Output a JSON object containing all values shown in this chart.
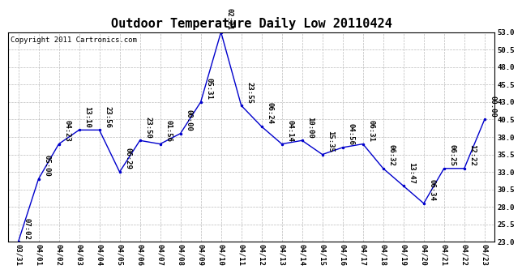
{
  "title": "Outdoor Temperature Daily Low 20110424",
  "copyright": "Copyright 2011 Cartronics.com",
  "x_labels": [
    "03/31",
    "04/01",
    "04/02",
    "04/03",
    "04/04",
    "04/05",
    "04/06",
    "04/07",
    "04/08",
    "04/09",
    "04/10",
    "04/11",
    "04/12",
    "04/13",
    "04/14",
    "04/15",
    "04/16",
    "04/17",
    "04/18",
    "04/19",
    "04/20",
    "04/21",
    "04/22",
    "04/23"
  ],
  "y_values": [
    23.0,
    32.0,
    37.0,
    39.0,
    39.0,
    33.0,
    37.5,
    37.0,
    38.5,
    43.0,
    53.0,
    42.5,
    39.5,
    37.0,
    37.5,
    35.5,
    36.5,
    37.0,
    33.5,
    31.0,
    28.5,
    33.5,
    33.5,
    40.5
  ],
  "annotations": [
    "07:02",
    "05:00",
    "04:23",
    "13:10",
    "23:56",
    "06:29",
    "23:50",
    "01:56",
    "00:00",
    "05:31",
    "02:21",
    "23:55",
    "06:24",
    "04:14",
    "10:00",
    "15:35",
    "04:56",
    "06:31",
    "06:32",
    "13:47",
    "06:34",
    "06:25",
    "12:22",
    "00:00"
  ],
  "line_color": "#0000cc",
  "marker_color": "#0000cc",
  "bg_color": "#ffffff",
  "grid_color": "#bbbbbb",
  "ylim_min": 23.0,
  "ylim_max": 53.0,
  "yticks": [
    23.0,
    25.5,
    28.0,
    30.5,
    33.0,
    35.5,
    38.0,
    40.5,
    43.0,
    45.5,
    48.0,
    50.5,
    53.0
  ],
  "title_fontsize": 11,
  "annotation_fontsize": 6.5,
  "copyright_fontsize": 6.5
}
